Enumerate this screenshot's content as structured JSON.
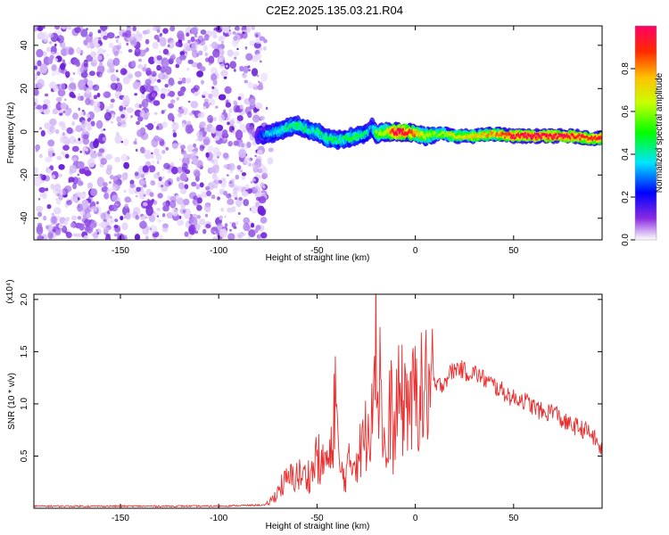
{
  "title": "C2E2.2025.135.03.21.R04",
  "chart_data": [
    {
      "type": "heatmap",
      "xlabel": "Height of straight line (km)",
      "ylabel": "Frequency (Hz)",
      "xlim": [
        -194,
        95
      ],
      "ylim": [
        -50,
        49
      ],
      "xticks": [
        -150,
        -100,
        -50,
        0,
        50
      ],
      "yticks": [
        -40,
        -20,
        0,
        20,
        40
      ],
      "noise_region_x": [
        -194,
        -76
      ],
      "ridge_line": {
        "x": [
          -80,
          -75,
          -70,
          -65,
          -60,
          -55,
          -50,
          -45,
          -40,
          -35,
          -30,
          -25,
          -22,
          -20,
          -15,
          -10,
          -5,
          0,
          5,
          10,
          15,
          20,
          30,
          40,
          50,
          60,
          70,
          80,
          90,
          95
        ],
        "y": [
          -2,
          -1,
          0,
          2,
          3,
          1,
          0,
          -3,
          -4,
          -3,
          -2,
          -1,
          2,
          -1,
          0,
          0,
          0,
          -1,
          -2,
          -1,
          -1,
          -2,
          -2,
          -1,
          -2,
          -2,
          -2,
          -2,
          -3,
          -3
        ],
        "amplitude": [
          0.2,
          0.3,
          0.35,
          0.4,
          0.45,
          0.4,
          0.4,
          0.45,
          0.4,
          0.45,
          0.45,
          0.4,
          0.3,
          0.55,
          0.6,
          1.0,
          0.9,
          0.75,
          0.6,
          0.55,
          0.6,
          0.65,
          0.7,
          0.75,
          0.9,
          1.0,
          0.95,
          0.9,
          0.85,
          0.9
        ]
      },
      "colorbar": {
        "label": "Normalized spectral amplitude",
        "range": [
          0,
          1
        ],
        "ticks": [
          "0.0",
          "0.2",
          "0.4",
          "0.6",
          "0.8"
        ]
      }
    },
    {
      "type": "line",
      "xlabel": "Height of straight line (km)",
      "ylabel": "SNR (10 * v/v)",
      "y_multiplier": "(x10⁴)",
      "xlim": [
        -194,
        95
      ],
      "ylim": [
        0,
        2.05
      ],
      "xticks": [
        -150,
        -100,
        -50,
        0,
        50
      ],
      "yticks": [
        "0.5",
        "1.0",
        "1.5",
        "2.0"
      ],
      "color": "#e83030",
      "series": [
        {
          "x": [
            -194,
            -150,
            -100,
            -80,
            -76,
            -72,
            -68,
            -64,
            -60,
            -56,
            -52,
            -50,
            -48,
            -46,
            -44,
            -42,
            -41,
            -40,
            -39,
            -38,
            -36,
            -34,
            -32,
            -30,
            -28,
            -26,
            -24,
            -22,
            -21,
            -20,
            -19,
            -18,
            -17,
            -16,
            -15,
            -14,
            -13,
            -12,
            -11,
            -10,
            -8,
            -6,
            -4,
            -2,
            0,
            2,
            4,
            6,
            8,
            10,
            14,
            18,
            22,
            26,
            30,
            34,
            38,
            42,
            46,
            50,
            54,
            58,
            62,
            66,
            70,
            74,
            78,
            82,
            86,
            90,
            95
          ],
          "y": [
            0.02,
            0.02,
            0.02,
            0.03,
            0.03,
            0.1,
            0.22,
            0.28,
            0.32,
            0.3,
            0.35,
            0.55,
            0.35,
            0.5,
            0.4,
            0.6,
            1.25,
            0.9,
            0.4,
            0.35,
            0.3,
            0.4,
            0.45,
            0.5,
            0.55,
            0.65,
            0.8,
            1.1,
            2.05,
            1.5,
            1.0,
            1.5,
            1.0,
            0.6,
            0.5,
            0.4,
            0.9,
            1.0,
            0.55,
            0.9,
            1.05,
            1.0,
            1.1,
            0.95,
            1.1,
            1.15,
            1.05,
            1.2,
            1.1,
            1.15,
            1.2,
            1.3,
            1.35,
            1.3,
            1.3,
            1.25,
            1.2,
            1.15,
            1.1,
            1.05,
            1.05,
            1.0,
            0.95,
            0.9,
            0.95,
            0.85,
            0.8,
            0.78,
            0.75,
            0.7,
            0.55
          ]
        }
      ]
    }
  ]
}
